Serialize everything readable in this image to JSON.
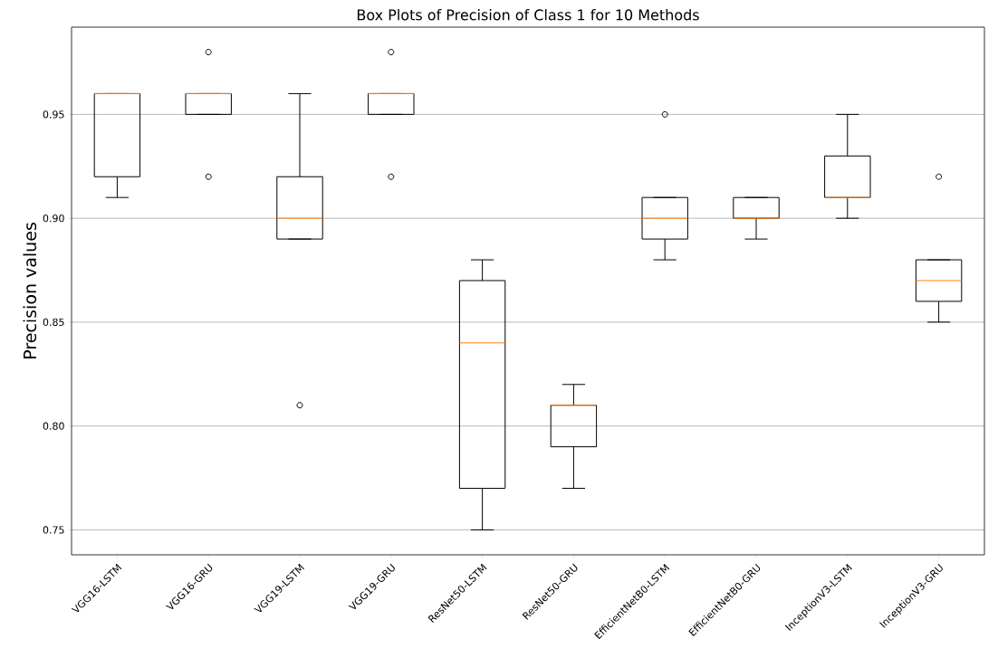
{
  "chart_data": {
    "type": "box",
    "title": "Box Plots of Precision of Class 1 for 10 Methods",
    "ylabel": "Precision values",
    "categories": [
      "VGG16-LSTM",
      "VGG16-GRU",
      "VGG19-LSTM",
      "VGG19-GRU",
      "ResNet50-LSTM",
      "ResNet50-GRU",
      "EfficientNetB0-LSTM",
      "EfficientNetB0-GRU",
      "InceptionV3-LSTM",
      "InceptionV3-GRU"
    ],
    "boxes": [
      {
        "low": 0.91,
        "q1": 0.92,
        "median": 0.96,
        "q3": 0.96,
        "high": 0.96
      },
      {
        "low": 0.95,
        "q1": 0.95,
        "median": 0.96,
        "q3": 0.96,
        "high": 0.96,
        "outliers": [
          0.98,
          0.92
        ]
      },
      {
        "low": 0.89,
        "q1": 0.89,
        "median": 0.9,
        "q3": 0.92,
        "high": 0.96,
        "outliers": [
          0.81
        ]
      },
      {
        "low": 0.95,
        "q1": 0.95,
        "median": 0.96,
        "q3": 0.96,
        "high": 0.96,
        "outliers": [
          0.98,
          0.92
        ]
      },
      {
        "low": 0.75,
        "q1": 0.77,
        "median": 0.84,
        "q3": 0.87,
        "high": 0.88
      },
      {
        "low": 0.77,
        "q1": 0.79,
        "median": 0.81,
        "q3": 0.81,
        "high": 0.82
      },
      {
        "low": 0.88,
        "q1": 0.89,
        "median": 0.9,
        "q3": 0.91,
        "high": 0.91,
        "outliers": [
          0.95
        ]
      },
      {
        "low": 0.89,
        "q1": 0.9,
        "median": 0.9,
        "q3": 0.91,
        "high": 0.91
      },
      {
        "low": 0.9,
        "q1": 0.91,
        "median": 0.91,
        "q3": 0.93,
        "high": 0.95
      },
      {
        "low": 0.85,
        "q1": 0.86,
        "median": 0.87,
        "q3": 0.88,
        "high": 0.88,
        "outliers": [
          0.92
        ]
      }
    ],
    "ylim": [
      0.738,
      0.992
    ],
    "yticks": [
      {
        "value": 0.75,
        "label": "0.75"
      },
      {
        "value": 0.8,
        "label": "0.80"
      },
      {
        "value": 0.85,
        "label": "0.85"
      },
      {
        "value": 0.9,
        "label": "0.90"
      },
      {
        "value": 0.95,
        "label": "0.95"
      }
    ],
    "grid": "y"
  }
}
